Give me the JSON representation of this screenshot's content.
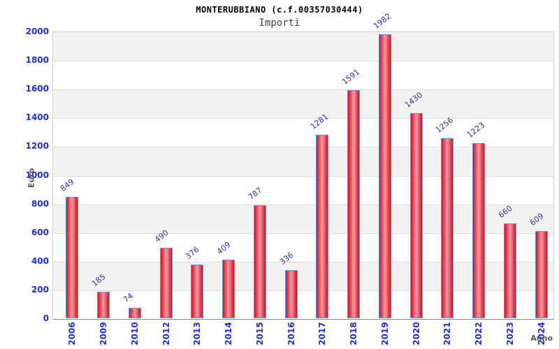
{
  "title": "MONTERUBBIANO (c.f.00357030444)",
  "subtitle": "Importi",
  "chart_data": {
    "type": "bar",
    "categories": [
      "2006",
      "2009",
      "2010",
      "2012",
      "2013",
      "2014",
      "2015",
      "2016",
      "2017",
      "2018",
      "2019",
      "2020",
      "2021",
      "2022",
      "2023",
      "2024"
    ],
    "values": [
      849,
      185,
      74,
      490,
      376,
      409,
      787,
      336,
      1281,
      1591,
      1982,
      1430,
      1256,
      1223,
      660,
      609
    ],
    "title": "MONTERUBBIANO (c.f.00357030444)",
    "subtitle": "Importi",
    "xlabel": "Anno",
    "ylabel": "Euro",
    "ylim": [
      0,
      2000
    ],
    "ytick_step": 200,
    "yticks": [
      0,
      200,
      400,
      600,
      800,
      1000,
      1200,
      1400,
      1600,
      1800,
      2000
    ],
    "grid": "horizontal-bands-alternating",
    "legend_position": "none",
    "colors": {
      "bar_edge": "#d40f22",
      "bar_mid": "#f49aa2",
      "bar_border": "#5d9cec",
      "axis_tick_label": "#2030cf",
      "value_label": "#333399",
      "axis_title": "#555555",
      "band_gray": "#f2f2f2",
      "band_white": "#ffffff",
      "grid_line": "#dddddd",
      "plot_frame": "#cfcfcf",
      "baseline": "#888888"
    }
  }
}
